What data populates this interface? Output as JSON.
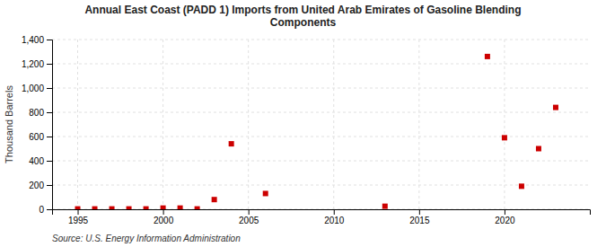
{
  "chart_data": {
    "type": "scatter",
    "title": "Annual East Coast (PADD 1) Imports from United Arab Emirates of Gasoline Blending\nComponents",
    "ylabel": "Thousand Barrels",
    "source": "Source: U.S. Energy Information Administration",
    "x": [
      1995,
      1996,
      1997,
      1998,
      1999,
      2000,
      2001,
      2002,
      2003,
      2004,
      2006,
      2013,
      2019,
      2020,
      2021,
      2022,
      2023
    ],
    "values": [
      3,
      3,
      3,
      3,
      3,
      10,
      10,
      3,
      80,
      540,
      130,
      25,
      1260,
      590,
      190,
      500,
      840
    ],
    "color": "#cc0000",
    "marker": "square",
    "xlim": [
      1993.5,
      2025
    ],
    "xticks": [
      1995,
      2000,
      2005,
      2010,
      2015,
      2020
    ],
    "ylim": [
      0,
      1400
    ],
    "yticks": [
      0,
      200,
      400,
      600,
      800,
      {
        "value": 1000,
        "label": "1,000"
      },
      {
        "value": 1200,
        "label": "1,200"
      },
      {
        "value": 1400,
        "label": "1,400"
      }
    ],
    "grid": true
  }
}
